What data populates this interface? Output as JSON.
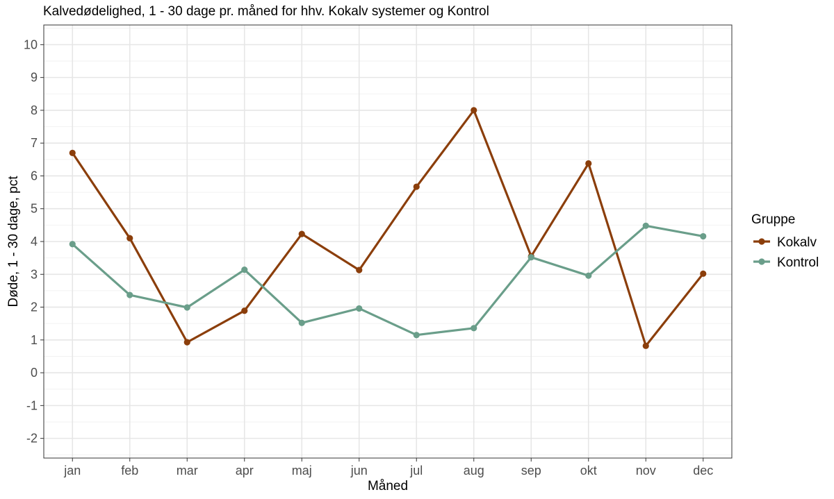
{
  "chart_data": {
    "type": "line",
    "title": "Kalvedødelighed, 1 - 30 dage pr. måned for hhv. Kokalv systemer og Kontrol",
    "xlabel": "Måned",
    "ylabel": "Døde, 1 - 30 dage, pct",
    "categories": [
      "jan",
      "feb",
      "mar",
      "apr",
      "maj",
      "jun",
      "jul",
      "aug",
      "sep",
      "okt",
      "nov",
      "dec"
    ],
    "ylim": [
      -2.6,
      10.6
    ],
    "yticks": [
      -2,
      -1,
      0,
      1,
      2,
      3,
      4,
      5,
      6,
      7,
      8,
      9,
      10
    ],
    "grid": true,
    "legend": {
      "title": "Gruppe",
      "position": "right"
    },
    "series": [
      {
        "name": "Kokalv",
        "color": "#8B3E0B",
        "values": [
          6.7,
          4.1,
          0.93,
          1.89,
          4.23,
          3.13,
          5.67,
          8.0,
          3.55,
          6.38,
          0.82,
          3.02
        ]
      },
      {
        "name": "Kontrol",
        "color": "#6A9E8A",
        "values": [
          3.92,
          2.37,
          1.99,
          3.14,
          1.52,
          1.96,
          1.15,
          1.36,
          3.52,
          2.96,
          4.48,
          4.16
        ]
      }
    ]
  }
}
